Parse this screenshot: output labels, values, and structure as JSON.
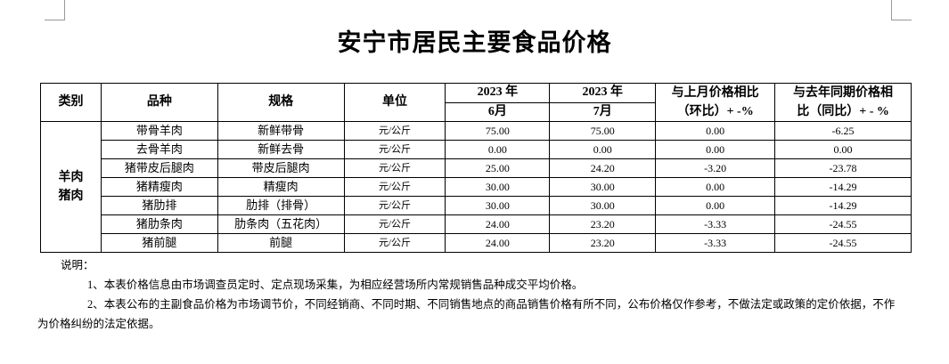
{
  "header": {
    "title": "安宁市居民主要食品价格"
  },
  "table": {
    "header": {
      "category": "类别",
      "variety": "品种",
      "spec": "规格",
      "unit": "单位",
      "month1": {
        "year": "2023 年",
        "month": "6月"
      },
      "month2": {
        "year": "2023 年",
        "month": "7月"
      },
      "mom": [
        "与上月价格相比",
        "（环比）+ -%"
      ],
      "yoy": [
        "与去年同期价格相",
        "比（同比）+ - %"
      ]
    },
    "category": [
      "羊肉",
      "猪肉"
    ],
    "rows": [
      [
        "带骨羊肉",
        "新鲜带骨",
        "元/公斤",
        "75.00",
        "75.00",
        "0.00",
        "-6.25"
      ],
      [
        "去骨羊肉",
        "新鲜去骨",
        "元/公斤",
        "0.00",
        "0.00",
        "0.00",
        "0.00"
      ],
      [
        "猪带皮后腿肉",
        "带皮后腿肉",
        "元/公斤",
        "25.00",
        "24.20",
        "-3.20",
        "-23.78"
      ],
      [
        "猪精瘦肉",
        "精瘦肉",
        "元/公斤",
        "30.00",
        "30.00",
        "0.00",
        "-14.29"
      ],
      [
        "猪肋排",
        "肋排（排骨）",
        "元/公斤",
        "30.00",
        "30.00",
        "0.00",
        "-14.29"
      ],
      [
        "猪肋条肉",
        "肋条肉（五花肉）",
        "元/公斤",
        "24.00",
        "23.20",
        "-3.33",
        "-24.55"
      ],
      [
        "猪前腿",
        "前腿",
        "元/公斤",
        "24.00",
        "23.20",
        "-3.33",
        "-24.55"
      ]
    ]
  },
  "notes": {
    "label": "说明：",
    "items": [
      "1、本表价格信息由市场调查员定时、定点现场采集，为相应经营场所内常规销售品种成交平均价格。",
      "2、本表公布的主副食品价格为市场调节价，不同经销商、不同时期、不同销售地点的商品销售价格有所不同，公布价格仅作参考，不做法定或政策的定价依据，不作为价格纠纷的法定依据。"
    ]
  }
}
